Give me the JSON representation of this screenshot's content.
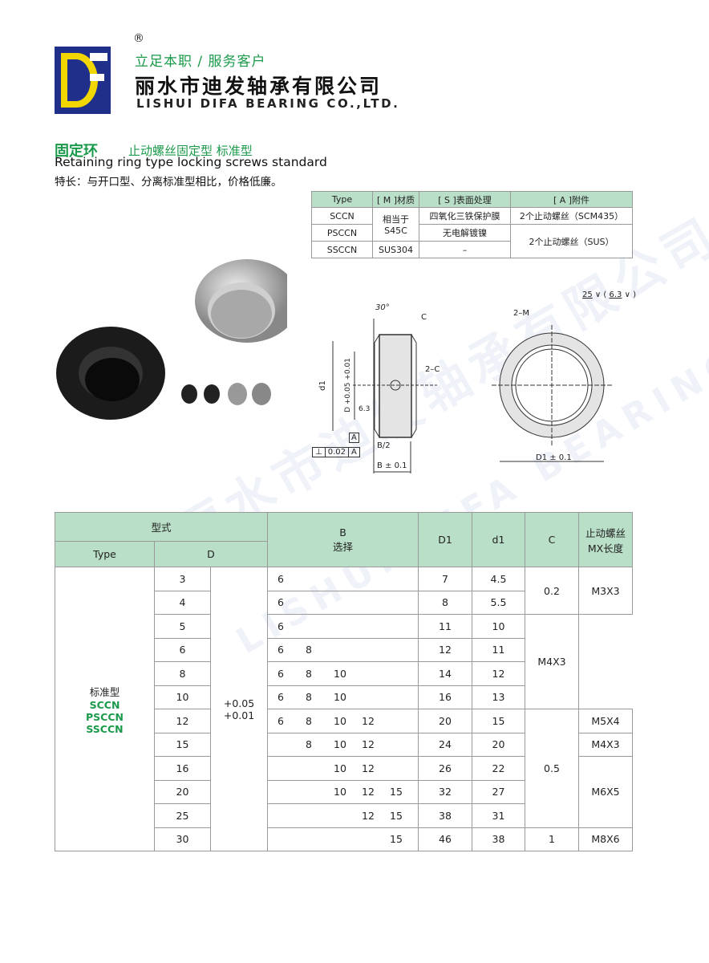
{
  "header": {
    "registered": "®",
    "slogan": "立足本职 / 服务客户",
    "company_cn": "丽水市迪发轴承有限公司",
    "company_en": "LISHUI DIFA BEARING CO.,LTD.",
    "logo_text": "DF"
  },
  "product": {
    "title": "固定环",
    "subtitle": "止动螺丝固定型  标准型",
    "title_en": "Retaining ring type locking screws standard",
    "feature": "特长：与开口型、分离标准型相比，价格低廉。"
  },
  "spec_table": {
    "headers": [
      "Type",
      "[ M ]材质",
      "[ S ]表面处理",
      "[ A ]附件"
    ],
    "rows": [
      {
        "type": "SCCN",
        "surface": "四氧化三铁保护膜",
        "accessory": "2个止动螺丝（SCM435）"
      },
      {
        "type": "PSCCN",
        "surface": "无电解镀镍"
      },
      {
        "type": "SSCCN",
        "material": "SUS304",
        "surface": "–"
      }
    ],
    "material_shared": "相当于 S45C",
    "accessory_shared": "2个止动螺丝（SUS）"
  },
  "drawing": {
    "angle": "30°",
    "chamfer": "C",
    "chamfer2": "2–C",
    "d1": "d1",
    "D_tol": "D +0.05 +0.01",
    "roughness1": "6.3",
    "datum": "A",
    "perp_sym": "⊥",
    "perp_val": "0.02",
    "half_b": "B/2",
    "b_tol": "B ± 0.1",
    "screw": "2–M",
    "D1_tol": "D1 ± 0.1",
    "rough_main": "25",
    "rough_other": "6.3"
  },
  "main_table": {
    "h_model": "型式",
    "h_type": "Type",
    "h_D": "D",
    "h_B": "B\n选择",
    "h_D1": "D1",
    "h_d1": "d1",
    "h_C": "C",
    "h_screw": "止动螺丝 MX长度",
    "type_label": "标准型",
    "types": [
      "SCCN",
      "PSCCN",
      "SSCCN"
    ],
    "tolerance": [
      "+0.05",
      "+0.01"
    ],
    "rows": [
      {
        "D": "3",
        "B": [
          "6",
          "",
          "",
          "",
          ""
        ],
        "D1": "7",
        "d1": "4.5"
      },
      {
        "D": "4",
        "B": [
          "6",
          "",
          "",
          "",
          ""
        ],
        "D1": "8",
        "d1": "5.5"
      },
      {
        "D": "5",
        "B": [
          "6",
          "",
          "",
          "",
          ""
        ],
        "D1": "11",
        "d1": "10"
      },
      {
        "D": "6",
        "B": [
          "6",
          "8",
          "",
          "",
          ""
        ],
        "D1": "12",
        "d1": "11"
      },
      {
        "D": "8",
        "B": [
          "6",
          "8",
          "10",
          "",
          ""
        ],
        "D1": "14",
        "d1": "12"
      },
      {
        "D": "10",
        "B": [
          "6",
          "8",
          "10",
          "",
          ""
        ],
        "D1": "16",
        "d1": "13"
      },
      {
        "D": "12",
        "B": [
          "6",
          "8",
          "10",
          "12",
          ""
        ],
        "D1": "20",
        "d1": "15"
      },
      {
        "D": "15",
        "B": [
          "",
          "8",
          "10",
          "12",
          ""
        ],
        "D1": "24",
        "d1": "20"
      },
      {
        "D": "16",
        "B": [
          "",
          "",
          "10",
          "12",
          ""
        ],
        "D1": "26",
        "d1": "22"
      },
      {
        "D": "20",
        "B": [
          "",
          "",
          "10",
          "12",
          "15"
        ],
        "D1": "32",
        "d1": "27"
      },
      {
        "D": "25",
        "B": [
          "",
          "",
          "",
          "12",
          "15"
        ],
        "D1": "38",
        "d1": "31"
      },
      {
        "D": "30",
        "B": [
          "",
          "",
          "",
          "",
          "15"
        ],
        "D1": "46",
        "d1": "38"
      }
    ],
    "C": [
      "0.2",
      "0.5",
      "1"
    ],
    "screw": [
      "M3X3",
      "M4X3",
      "M5X4",
      "M4X3",
      "M6X5",
      "M8X6"
    ]
  },
  "watermark": {
    "cn": "丽水市迪发轴承有限公司",
    "en": "LISHUI DIFA BEARING CO.,LTD."
  },
  "colors": {
    "green": "#1a9a4a",
    "header_bg": "#b9dfc8",
    "logo_blue": "#1f2f8a",
    "logo_yellow": "#f2d600"
  }
}
